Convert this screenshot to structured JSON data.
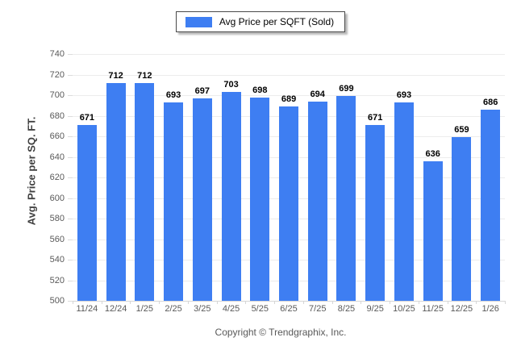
{
  "legend": {
    "label": "Avg Price per SQFT (Sold)"
  },
  "footer": {
    "copyright": "Copyright © Trendgraphix, Inc."
  },
  "colors": {
    "bar": "#3e7ef2",
    "gridline": "#ececec",
    "axis": "#d6d6d6",
    "tick_text": "#595959",
    "value_label": "#000000"
  },
  "chart_data": {
    "type": "bar",
    "title": "Avg Price per SQFT (Sold)",
    "categories": [
      "11/24",
      "12/24",
      "1/25",
      "2/25",
      "3/25",
      "4/25",
      "5/25",
      "6/25",
      "7/25",
      "8/25",
      "9/25",
      "10/25",
      "11/25",
      "12/25",
      "1/26"
    ],
    "values": [
      671,
      712,
      712,
      693,
      697,
      703,
      698,
      689,
      694,
      699,
      671,
      693,
      636,
      659,
      686
    ],
    "xlabel": "",
    "ylabel": "Avg. Price per SQ. FT.",
    "ylim": [
      500,
      740
    ],
    "ytick_step": 20,
    "grid": true,
    "legend_position": "top-center"
  }
}
